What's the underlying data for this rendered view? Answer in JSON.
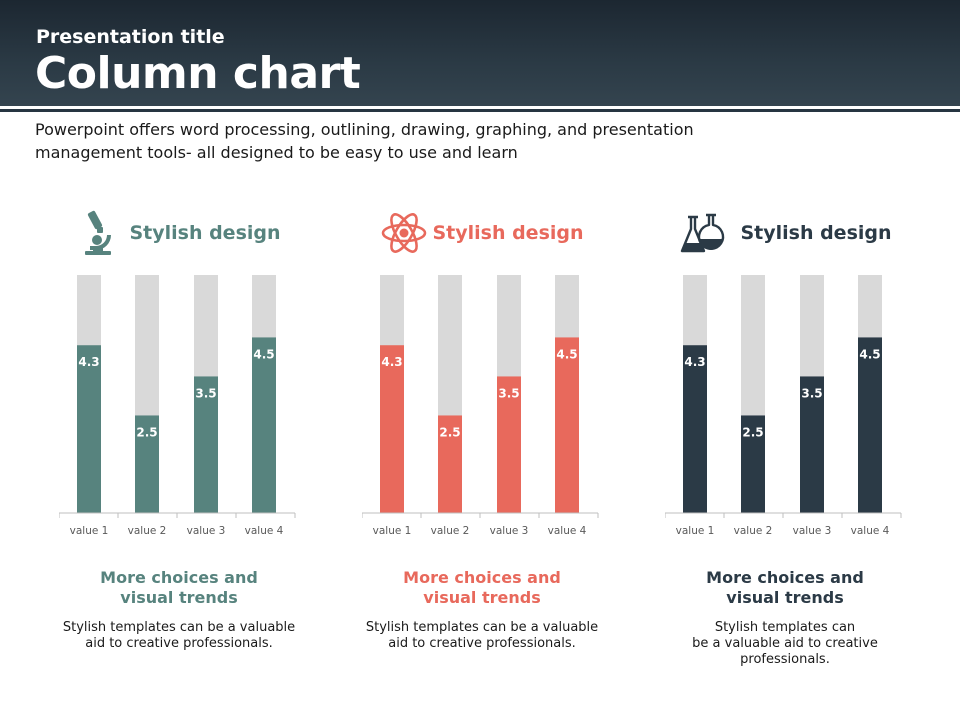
{
  "header": {
    "supertitle": "Presentation title",
    "title": "Column chart"
  },
  "intro": "Powerpoint offers word processing, outlining, drawing, graphing, and presentation management tools- all designed to be easy to use and learn",
  "colors": {
    "teal": "#57837e",
    "coral": "#e8695c",
    "navy": "#2b3a46",
    "bar_background": "#d9d9d9"
  },
  "panels": [
    {
      "icon": "microscope-icon",
      "heading": "Stylish design",
      "color": "#57837e",
      "subheading_line1": "More choices and",
      "subheading_line2": "visual trends",
      "desc_lines": [
        "Stylish templates can  be a valuable",
        "aid to creative professionals."
      ]
    },
    {
      "icon": "atom-icon",
      "heading": "Stylish design",
      "color": "#e8695c",
      "subheading_line1": "More choices and",
      "subheading_line2": "visual trends",
      "desc_lines": [
        "Stylish templates can be a valuable",
        "aid to creative professionals."
      ]
    },
    {
      "icon": "flasks-icon",
      "heading": "Stylish design",
      "color": "#2b3a46",
      "subheading_line1": "More choices and",
      "subheading_line2": "visual trends",
      "desc_lines": [
        "Stylish templates can",
        "be a valuable aid to creative",
        "professionals."
      ]
    }
  ],
  "chart_data": [
    {
      "type": "bar",
      "categories": [
        "value 1",
        "value 2",
        "value 3",
        "value 4"
      ],
      "values": [
        4.3,
        2.5,
        3.5,
        4.5
      ],
      "color": "#57837e"
    },
    {
      "type": "bar",
      "categories": [
        "value 1",
        "value 2",
        "value 3",
        "value 4"
      ],
      "values": [
        4.3,
        2.5,
        3.5,
        4.5
      ],
      "color": "#e8695c"
    },
    {
      "type": "bar",
      "categories": [
        "value 1",
        "value 2",
        "value 3",
        "value 4"
      ],
      "values": [
        4.3,
        2.5,
        3.5,
        4.5
      ],
      "color": "#2b3a46"
    }
  ]
}
